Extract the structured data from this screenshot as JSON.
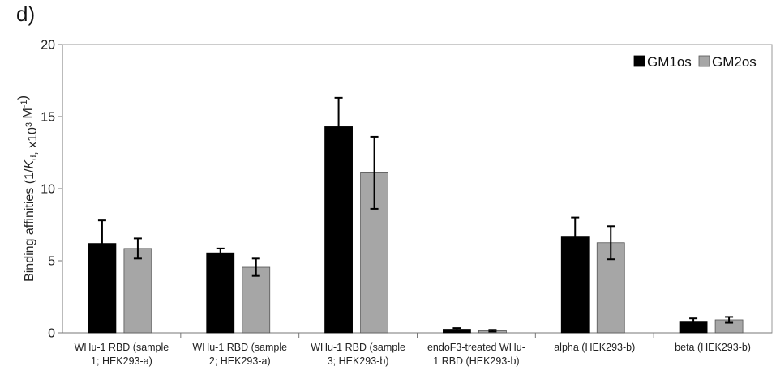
{
  "panel_label": "d)",
  "chart_data": {
    "type": "bar",
    "ylabel": "Binding affinities (1/K_d, x10^3 M^-1)",
    "ylim": [
      0,
      20
    ],
    "yticks": [
      0,
      5,
      10,
      15,
      20
    ],
    "legend_position": "top-right",
    "grid": false,
    "categories": [
      [
        "WHu-1 RBD (sample",
        "1; HEK293-a)"
      ],
      [
        "WHu-1 RBD (sample",
        "2; HEK293-a)"
      ],
      [
        "WHu-1 RBD (sample",
        "3; HEK293-b)"
      ],
      [
        "endoF3-treated WHu-",
        "1 RBD (HEK293-b)"
      ],
      [
        "alpha (HEK293-b)"
      ],
      [
        "beta (HEK293-b)"
      ]
    ],
    "series": [
      {
        "name": "GM1os",
        "color": "#000000",
        "values": [
          6.2,
          5.55,
          14.3,
          0.25,
          6.65,
          0.75
        ],
        "errors": [
          1.6,
          0.3,
          2.0,
          0.08,
          1.35,
          0.25
        ]
      },
      {
        "name": "GM2os",
        "color": "#a6a6a6",
        "values": [
          5.85,
          4.55,
          11.1,
          0.15,
          6.25,
          0.9
        ],
        "errors": [
          0.7,
          0.6,
          2.5,
          0.06,
          1.15,
          0.2
        ]
      }
    ]
  }
}
